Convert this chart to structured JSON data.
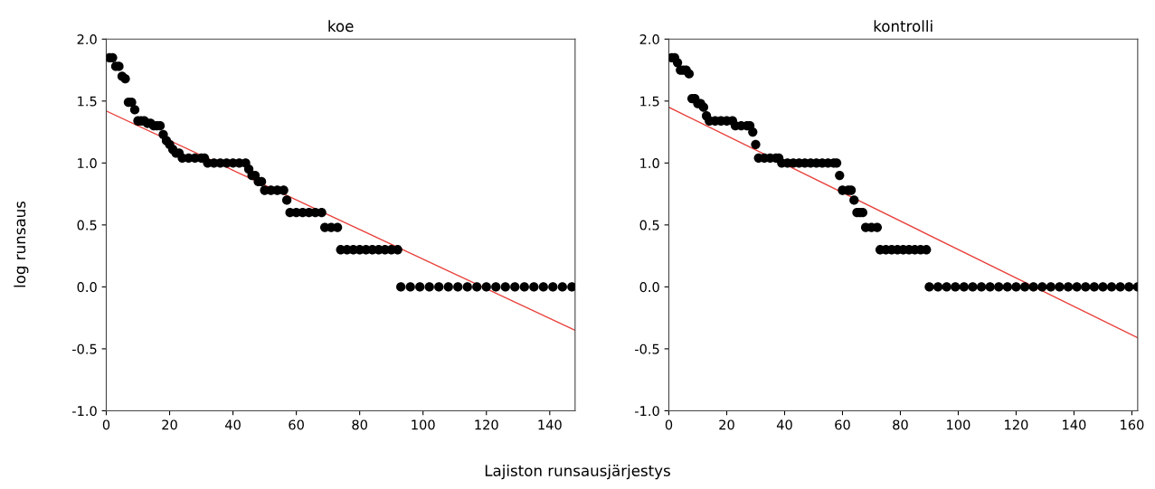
{
  "chart_data": [
    {
      "type": "scatter",
      "title": "koe",
      "ylabel": "log runsaus",
      "xlabel": "Lajiston runsausjärjestys",
      "grid": false,
      "xlim": [
        0,
        148
      ],
      "xticks": [
        0,
        20,
        40,
        60,
        80,
        100,
        120,
        140
      ],
      "ylim": [
        -1.0,
        2.0
      ],
      "yticks": [
        {
          "value": -1.0,
          "label": "-1.0"
        },
        {
          "value": -0.5,
          "label": "-0.5"
        },
        {
          "value": 0,
          "label": "0.0"
        },
        {
          "value": 0.5,
          "label": "0.5"
        },
        {
          "value": 1.0,
          "label": "1.0"
        },
        {
          "value": 1.5,
          "label": "1.5"
        },
        {
          "value": 2.0,
          "label": "2.0"
        }
      ],
      "series": [
        {
          "marker": "circle",
          "color": "#000000",
          "x": [
            1,
            2,
            3,
            4,
            5,
            6,
            7,
            8,
            9,
            10,
            11,
            12,
            13,
            14,
            15,
            16,
            17,
            18,
            19,
            20,
            21,
            22,
            23,
            24,
            26,
            28,
            30,
            31,
            32,
            34,
            36,
            38,
            40,
            42,
            44,
            45,
            46,
            47,
            48,
            49,
            50,
            52,
            54,
            56,
            57,
            58,
            60,
            62,
            64,
            66,
            68,
            69,
            71,
            73,
            74,
            76,
            78,
            80,
            82,
            84,
            86,
            88,
            90,
            92,
            93,
            96,
            99,
            102,
            105,
            108,
            111,
            114,
            117,
            120,
            123,
            126,
            129,
            132,
            135,
            138,
            141,
            144,
            147
          ],
          "values": [
            1.85,
            1.85,
            1.78,
            1.78,
            1.7,
            1.68,
            1.49,
            1.49,
            1.43,
            1.34,
            1.34,
            1.34,
            1.32,
            1.32,
            1.3,
            1.3,
            1.3,
            1.23,
            1.18,
            1.15,
            1.11,
            1.08,
            1.08,
            1.04,
            1.04,
            1.04,
            1.04,
            1.04,
            1.0,
            1.0,
            1.0,
            1.0,
            1.0,
            1.0,
            1.0,
            0.95,
            0.9,
            0.9,
            0.85,
            0.85,
            0.78,
            0.78,
            0.78,
            0.78,
            0.7,
            0.6,
            0.6,
            0.6,
            0.6,
            0.6,
            0.6,
            0.48,
            0.48,
            0.48,
            0.3,
            0.3,
            0.3,
            0.3,
            0.3,
            0.3,
            0.3,
            0.3,
            0.3,
            0.3,
            0,
            0,
            0,
            0,
            0,
            0,
            0,
            0,
            0,
            0,
            0,
            0,
            0,
            0,
            0,
            0,
            0,
            0,
            0
          ]
        },
        {
          "type": "line",
          "marker": "none",
          "color": "#e8413c",
          "x": [
            0,
            148
          ],
          "values": [
            1.42,
            -0.35
          ]
        }
      ]
    },
    {
      "type": "scatter",
      "title": "kontrolli",
      "grid": false,
      "xlim": [
        0,
        162
      ],
      "xticks": [
        0,
        20,
        40,
        60,
        80,
        100,
        120,
        140,
        160
      ],
      "ylim": [
        -1.0,
        2.0
      ],
      "yticks": [
        {
          "value": -1.0,
          "label": "-1.0"
        },
        {
          "value": -0.5,
          "label": "-0.5"
        },
        {
          "value": 0,
          "label": "0.0"
        },
        {
          "value": 0.5,
          "label": "0.5"
        },
        {
          "value": 1.0,
          "label": "1.0"
        },
        {
          "value": 1.5,
          "label": "1.5"
        },
        {
          "value": 2.0,
          "label": "2.0"
        }
      ],
      "series": [
        {
          "marker": "circle",
          "color": "#000000",
          "x": [
            1,
            2,
            3,
            4,
            5,
            6,
            7,
            8,
            9,
            10,
            11,
            12,
            13,
            14,
            16,
            18,
            20,
            22,
            23,
            25,
            27,
            28,
            29,
            30,
            31,
            33,
            35,
            37,
            38,
            39,
            41,
            43,
            45,
            47,
            49,
            51,
            53,
            55,
            57,
            58,
            59,
            60,
            62,
            63,
            64,
            65,
            66,
            67,
            68,
            70,
            72,
            73,
            75,
            77,
            79,
            81,
            83,
            85,
            87,
            89,
            90,
            93,
            96,
            99,
            102,
            105,
            108,
            111,
            114,
            117,
            120,
            123,
            126,
            129,
            132,
            135,
            138,
            141,
            144,
            147,
            150,
            153,
            156,
            159,
            162
          ],
          "values": [
            1.85,
            1.85,
            1.81,
            1.75,
            1.75,
            1.75,
            1.72,
            1.52,
            1.52,
            1.48,
            1.48,
            1.45,
            1.38,
            1.34,
            1.34,
            1.34,
            1.34,
            1.34,
            1.3,
            1.3,
            1.3,
            1.3,
            1.25,
            1.15,
            1.04,
            1.04,
            1.04,
            1.04,
            1.04,
            1.0,
            1.0,
            1.0,
            1.0,
            1.0,
            1.0,
            1.0,
            1.0,
            1.0,
            1.0,
            1.0,
            0.9,
            0.78,
            0.78,
            0.78,
            0.7,
            0.6,
            0.6,
            0.6,
            0.48,
            0.48,
            0.48,
            0.3,
            0.3,
            0.3,
            0.3,
            0.3,
            0.3,
            0.3,
            0.3,
            0.3,
            0,
            0,
            0,
            0,
            0,
            0,
            0,
            0,
            0,
            0,
            0,
            0,
            0,
            0,
            0,
            0,
            0,
            0,
            0,
            0,
            0,
            0,
            0,
            0,
            0
          ]
        },
        {
          "type": "line",
          "marker": "none",
          "color": "#e8413c",
          "x": [
            0,
            162
          ],
          "values": [
            1.45,
            -0.41
          ]
        }
      ]
    }
  ]
}
